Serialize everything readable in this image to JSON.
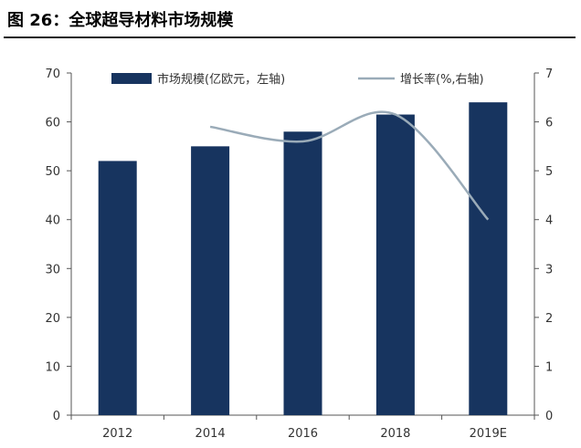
{
  "figure": {
    "title": "图 26：全球超导材料市场规模"
  },
  "chart_data": {
    "type": "bar",
    "categories": [
      "2012",
      "2014",
      "2016",
      "2018",
      "2019E"
    ],
    "series": [
      {
        "name": "市场规模(亿欧元，左轴)",
        "type": "bar",
        "axis": "left",
        "color": "#17345f",
        "values": [
          52,
          55,
          58,
          61.5,
          64
        ]
      },
      {
        "name": "增长率(%,右轴)",
        "type": "line",
        "axis": "right",
        "color": "#9aabb8",
        "values": [
          null,
          5.9,
          5.6,
          6.15,
          4.0
        ]
      }
    ],
    "y_left": {
      "ylim": [
        0,
        70
      ],
      "ticks": [
        0,
        10,
        20,
        30,
        40,
        50,
        60,
        70
      ]
    },
    "y_right": {
      "ylim": [
        0,
        7
      ],
      "ticks": [
        0,
        1,
        2,
        3,
        4,
        5,
        6,
        7
      ]
    },
    "legend_position": "top",
    "grid": false
  }
}
